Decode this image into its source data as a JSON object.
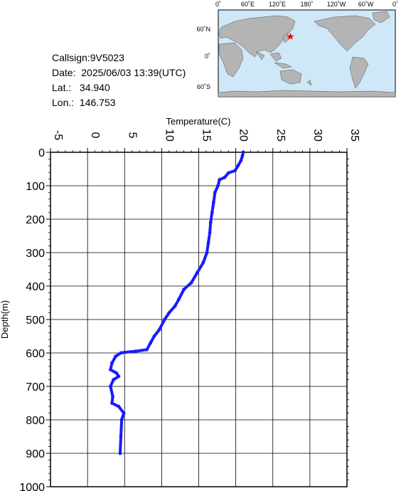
{
  "info": {
    "callsign": "Callsign:9V5023",
    "date": "Date:  2025/06/03 13:39(UTC)",
    "lat": "Lat.:   34.940",
    "lon": "Lon.:  146.753"
  },
  "map": {
    "lon_labels": [
      "0˚",
      "60˚E",
      "120˚E",
      "180˚",
      "120˚W",
      "60˚W",
      "0˚"
    ],
    "lat_labels": [
      "60˚N",
      "0˚",
      "60˚S"
    ],
    "marker_lat": 34.94,
    "marker_lon": 146.753,
    "ocean_color": "#cfe8f7",
    "land_color": "#b4b4b4",
    "marker_color": "#ff0000"
  },
  "chart_data": {
    "type": "line",
    "xlabel": "Temperature(C)",
    "ylabel": "Depth(m)",
    "xlim": [
      -5,
      35
    ],
    "ylim": [
      0,
      1000
    ],
    "x_ticks": [
      "-5",
      "0",
      "5",
      "10",
      "15",
      "20",
      "25",
      "30",
      "35"
    ],
    "y_ticks": [
      "0",
      "100",
      "200",
      "300",
      "400",
      "500",
      "600",
      "700",
      "800",
      "900",
      "1000"
    ],
    "grid": true,
    "series_color": "#1a1aff",
    "points": [
      {
        "t": 21.0,
        "d": 0
      },
      {
        "t": 20.9,
        "d": 10
      },
      {
        "t": 20.7,
        "d": 25
      },
      {
        "t": 20.3,
        "d": 40
      },
      {
        "t": 19.9,
        "d": 55
      },
      {
        "t": 19.0,
        "d": 62
      },
      {
        "t": 18.5,
        "d": 75
      },
      {
        "t": 17.8,
        "d": 82
      },
      {
        "t": 17.6,
        "d": 100
      },
      {
        "t": 17.2,
        "d": 120
      },
      {
        "t": 17.0,
        "d": 150
      },
      {
        "t": 16.8,
        "d": 180
      },
      {
        "t": 16.6,
        "d": 210
      },
      {
        "t": 16.5,
        "d": 240
      },
      {
        "t": 16.3,
        "d": 270
      },
      {
        "t": 16.1,
        "d": 300
      },
      {
        "t": 15.6,
        "d": 330
      },
      {
        "t": 14.8,
        "d": 360
      },
      {
        "t": 14.0,
        "d": 390
      },
      {
        "t": 13.0,
        "d": 410
      },
      {
        "t": 12.3,
        "d": 440
      },
      {
        "t": 11.8,
        "d": 460
      },
      {
        "t": 11.0,
        "d": 480
      },
      {
        "t": 10.4,
        "d": 500
      },
      {
        "t": 9.7,
        "d": 530
      },
      {
        "t": 9.0,
        "d": 550
      },
      {
        "t": 8.5,
        "d": 570
      },
      {
        "t": 8.0,
        "d": 590
      },
      {
        "t": 6.5,
        "d": 595
      },
      {
        "t": 5.0,
        "d": 598
      },
      {
        "t": 4.5,
        "d": 600
      },
      {
        "t": 3.8,
        "d": 610
      },
      {
        "t": 3.3,
        "d": 630
      },
      {
        "t": 3.1,
        "d": 650
      },
      {
        "t": 3.9,
        "d": 660
      },
      {
        "t": 4.2,
        "d": 670
      },
      {
        "t": 3.5,
        "d": 680
      },
      {
        "t": 3.1,
        "d": 700
      },
      {
        "t": 3.4,
        "d": 730
      },
      {
        "t": 3.3,
        "d": 750
      },
      {
        "t": 4.2,
        "d": 760
      },
      {
        "t": 4.9,
        "d": 780
      },
      {
        "t": 4.6,
        "d": 800
      },
      {
        "t": 4.5,
        "d": 850
      },
      {
        "t": 4.4,
        "d": 900
      }
    ]
  }
}
